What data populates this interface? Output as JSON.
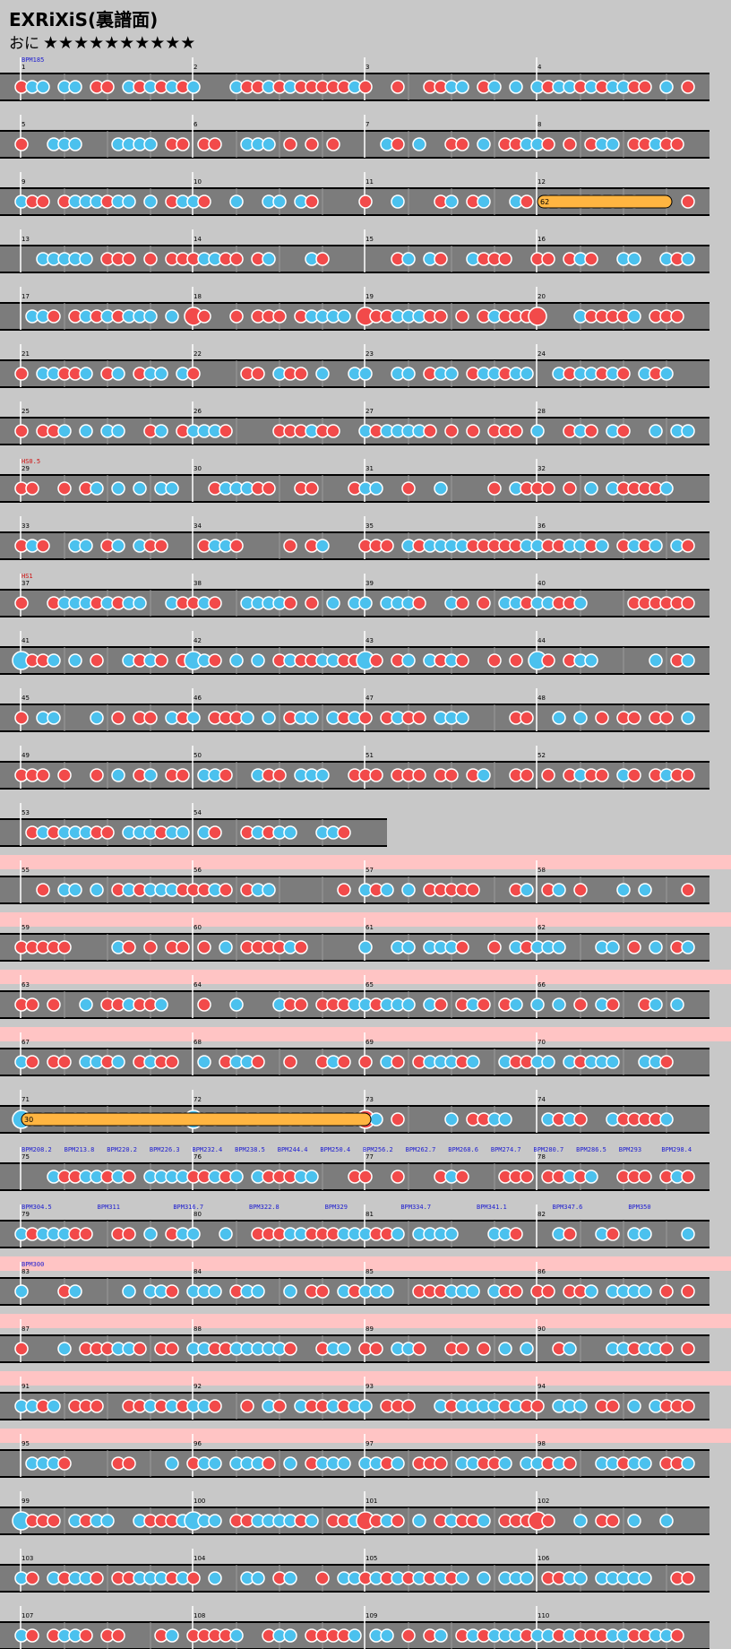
{
  "title": "EXRiXiS(裏譜面)",
  "difficulty": {
    "label": "おに",
    "stars": "★★★★★★★★★★"
  },
  "colors": {
    "don": "#f24a4a",
    "ka": "#4bc1ee",
    "drumroll": "#ffe84a",
    "balloon": "#ffb541",
    "lane": "#7c7c7c",
    "gogo": "#ffc4c4"
  },
  "rows": [
    {
      "measures": [
        "1",
        "2",
        "3",
        "4"
      ],
      "events": [
        "BPM185"
      ],
      "gogo": false
    },
    {
      "measures": [
        "5",
        "6",
        "7",
        "8"
      ],
      "events": [],
      "gogo": false
    },
    {
      "measures": [
        "9",
        "10",
        "11",
        "12"
      ],
      "events": [],
      "gogo": false,
      "balloon": "62"
    },
    {
      "measures": [
        "13",
        "14",
        "15",
        "16"
      ],
      "events": [],
      "gogo": false
    },
    {
      "measures": [
        "17",
        "18",
        "19",
        "20"
      ],
      "events": [],
      "gogo": false
    },
    {
      "measures": [
        "21",
        "22",
        "23",
        "24"
      ],
      "events": [],
      "gogo": false
    },
    {
      "measures": [
        "25",
        "26",
        "27",
        "28"
      ],
      "events": [],
      "gogo": false
    },
    {
      "measures": [
        "29",
        "30",
        "31",
        "32"
      ],
      "events": [
        "HS0.5"
      ],
      "gogo": false
    },
    {
      "measures": [
        "33",
        "34",
        "35",
        "36"
      ],
      "events": [],
      "gogo": false
    },
    {
      "measures": [
        "37",
        "38",
        "39",
        "40"
      ],
      "events": [
        "HS1"
      ],
      "gogo": false
    },
    {
      "measures": [
        "41",
        "42",
        "43",
        "44"
      ],
      "events": [],
      "gogo": false
    },
    {
      "measures": [
        "45",
        "46",
        "47",
        "48"
      ],
      "events": [],
      "gogo": false
    },
    {
      "measures": [
        "49",
        "50",
        "51",
        "52"
      ],
      "events": [],
      "gogo": false
    },
    {
      "measures": [
        "53",
        "54"
      ],
      "events": [],
      "gogo": false
    },
    {
      "measures": [
        "55",
        "56",
        "57",
        "58"
      ],
      "events": [],
      "gogo": true
    },
    {
      "measures": [
        "59",
        "60",
        "61",
        "62"
      ],
      "events": [],
      "gogo": true
    },
    {
      "measures": [
        "63",
        "64",
        "65",
        "66"
      ],
      "events": [],
      "gogo": true
    },
    {
      "measures": [
        "67",
        "68",
        "69",
        "70"
      ],
      "events": [],
      "gogo": true
    },
    {
      "measures": [
        "71",
        "72",
        "73",
        "74"
      ],
      "events": [],
      "gogo": false,
      "balloon": "30"
    },
    {
      "measures": [
        "75",
        "76",
        "77",
        "78"
      ],
      "events": [
        "BPM208.2",
        "BPM213.8",
        "BPM220.2",
        "BPM226.3",
        "BPM232.4",
        "BPM238.5",
        "BPM244.4",
        "BPM250.4",
        "BPM256.2",
        "BPM262.7",
        "BPM268.6",
        "BPM274.7",
        "BPM280.7",
        "BPM286.5",
        "BPM293",
        "BPM298.4"
      ],
      "gogo": false
    },
    {
      "measures": [
        "79",
        "80",
        "81",
        "82"
      ],
      "events": [
        "BPM304.5",
        "BPM311",
        "BPM316.7",
        "BPM322.8",
        "BPM329",
        "BPM334.7",
        "BPM341.1",
        "BPM347.6",
        "BPM350"
      ],
      "gogo": false
    },
    {
      "measures": [
        "83",
        "84",
        "85",
        "86"
      ],
      "events": [
        "BPM300"
      ],
      "gogo": true
    },
    {
      "measures": [
        "87",
        "88",
        "89",
        "90"
      ],
      "events": [],
      "gogo": true
    },
    {
      "measures": [
        "91",
        "92",
        "93",
        "94"
      ],
      "events": [],
      "gogo": true
    },
    {
      "measures": [
        "95",
        "96",
        "97",
        "98"
      ],
      "events": [],
      "gogo": true
    },
    {
      "measures": [
        "99",
        "100",
        "101",
        "102"
      ],
      "events": [],
      "gogo": false
    },
    {
      "measures": [
        "103",
        "104",
        "105",
        "106"
      ],
      "events": [],
      "gogo": false
    },
    {
      "measures": [
        "107",
        "108",
        "109",
        "110"
      ],
      "events": [],
      "gogo": false
    }
  ]
}
